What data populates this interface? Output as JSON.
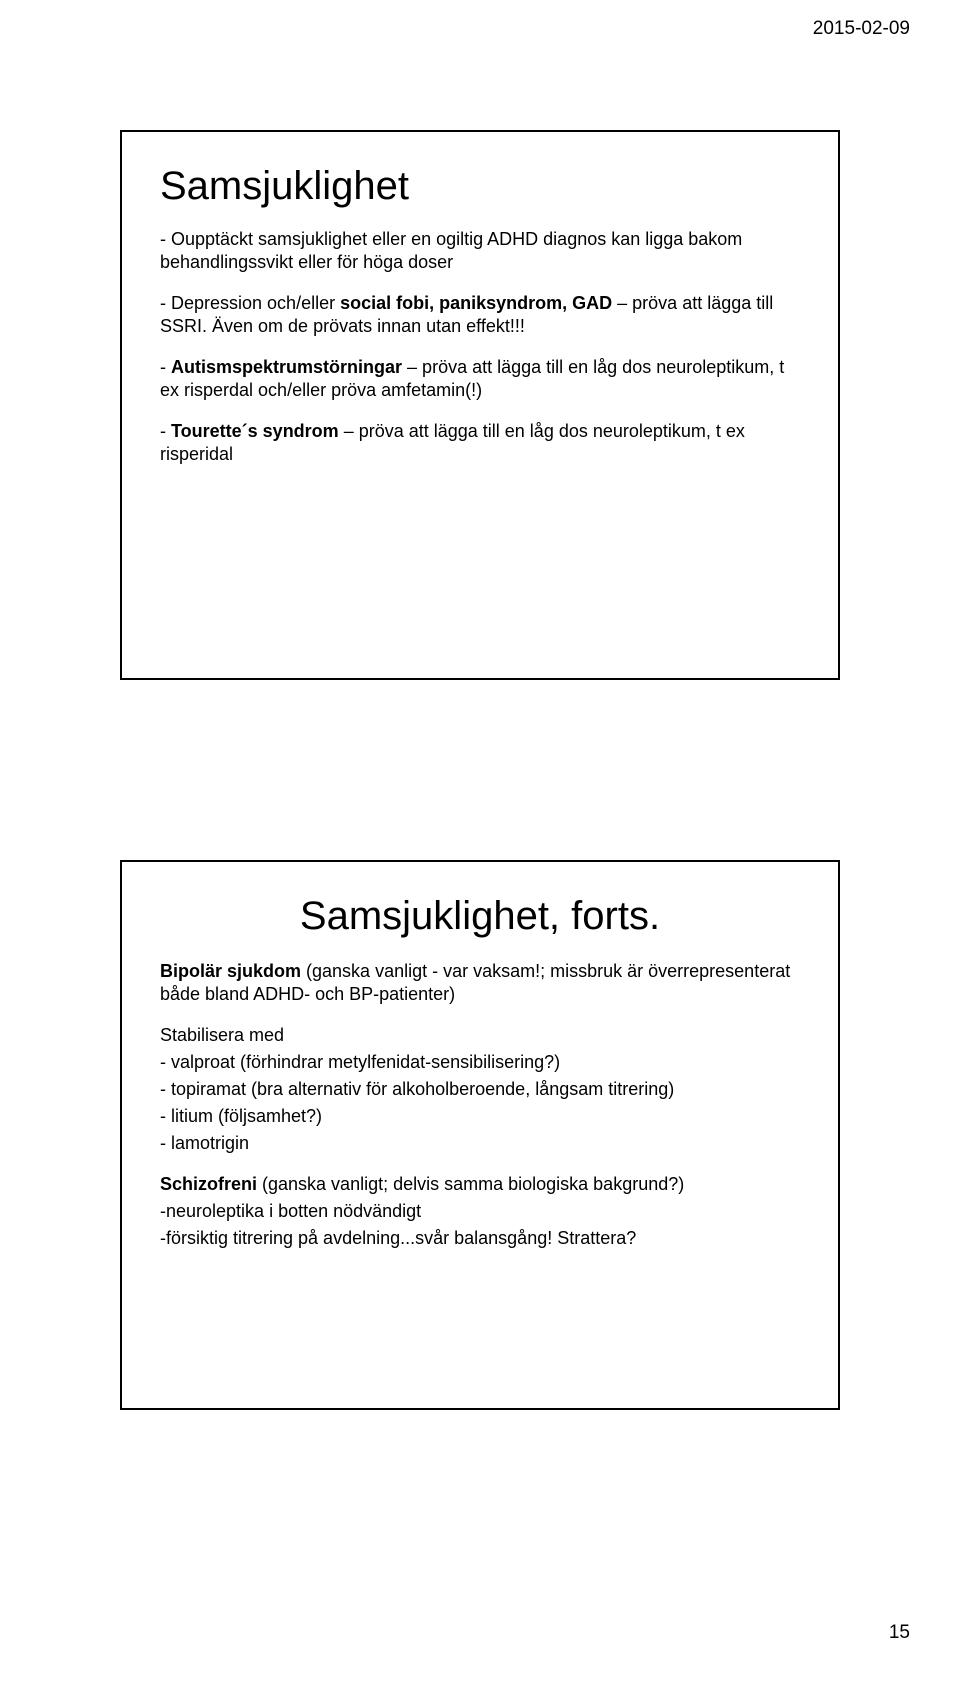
{
  "header": {
    "date": "2015-02-09"
  },
  "slide1": {
    "title": "Samsjuklighet",
    "p1_part1": "- Oupptäckt samsjuklighet eller en ogiltig ADHD diagnos kan ligga bakom behandlingssvikt eller för höga doser",
    "p2_prefix": "- Depression och/eller ",
    "p2_bold": "social fobi, paniksyndrom, GAD",
    "p2_suffix": " – pröva att lägga till SSRI. Även om de prövats innan utan effekt!!!",
    "p3_prefix": "- ",
    "p3_bold": "Autismspektrumstörningar",
    "p3_suffix": " – pröva att lägga till en låg dos neuroleptikum, t ex risperdal och/eller pröva amfetamin(!)",
    "p4_prefix": "- ",
    "p4_bold": "Tourette´s syndrom",
    "p4_suffix": " – pröva att lägga till en låg dos neuroleptikum, t ex risperidal"
  },
  "slide2": {
    "title": "Samsjuklighet, forts.",
    "p1_bold": "Bipolär sjukdom",
    "p1_text": " (ganska vanligt - var vaksam!; missbruk är överrepresenterat både bland ADHD- och BP-patienter)",
    "p2": "Stabilisera med",
    "l1": "- valproat (förhindrar metylfenidat-sensibilisering?)",
    "l2": "- topiramat (bra alternativ för alkoholberoende, långsam titrering)",
    "l3": "- litium (följsamhet?)",
    "l4": "- lamotrigin",
    "p3_bold": "Schizofreni ",
    "p3_text": "(ganska vanligt; delvis samma biologiska bakgrund?)",
    "p4": "-neuroleptika i botten nödvändigt",
    "p5": "-försiktig titrering på avdelning...svår balansgång! Strattera?"
  },
  "footer": {
    "page": "15"
  }
}
